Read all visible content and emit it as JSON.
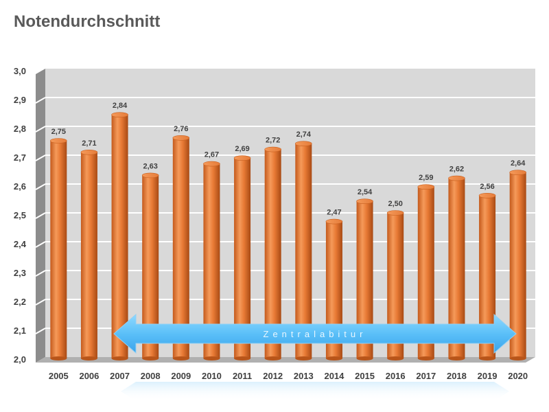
{
  "chart_data": {
    "type": "bar",
    "title": "Notendurchschnitt",
    "xlabel": "",
    "ylabel": "",
    "ylim": [
      2.0,
      3.0
    ],
    "yticks": [
      "2,0",
      "2,1",
      "2,2",
      "2,3",
      "2,4",
      "2,5",
      "2,6",
      "2,7",
      "2,8",
      "2,9",
      "3,0"
    ],
    "categories": [
      "2005",
      "2006",
      "2007",
      "2008",
      "2009",
      "2010",
      "2011",
      "2012",
      "2013",
      "2014",
      "2015",
      "2016",
      "2017",
      "2018",
      "2019",
      "2020"
    ],
    "values": [
      2.75,
      2.71,
      2.84,
      2.63,
      2.76,
      2.67,
      2.69,
      2.72,
      2.74,
      2.47,
      2.54,
      2.5,
      2.59,
      2.62,
      2.56,
      2.64
    ],
    "value_labels": [
      "2,75",
      "2,71",
      "2,84",
      "2,63",
      "2,76",
      "2,67",
      "2,69",
      "2,72",
      "2,74",
      "2,47",
      "2,54",
      "2,50",
      "2,59",
      "2,62",
      "2,56",
      "2,64"
    ],
    "grid": true,
    "annotation": {
      "text": "Zentralabitur",
      "from_category": "2008",
      "to_category": "2019",
      "style": "double-arrow"
    },
    "colors": {
      "bar": "#e87a35",
      "bar_light": "#f7a467",
      "wall": "#d9d9d9",
      "side_wall": "#8c8c8c",
      "arrow": "#5bc0f8"
    }
  }
}
